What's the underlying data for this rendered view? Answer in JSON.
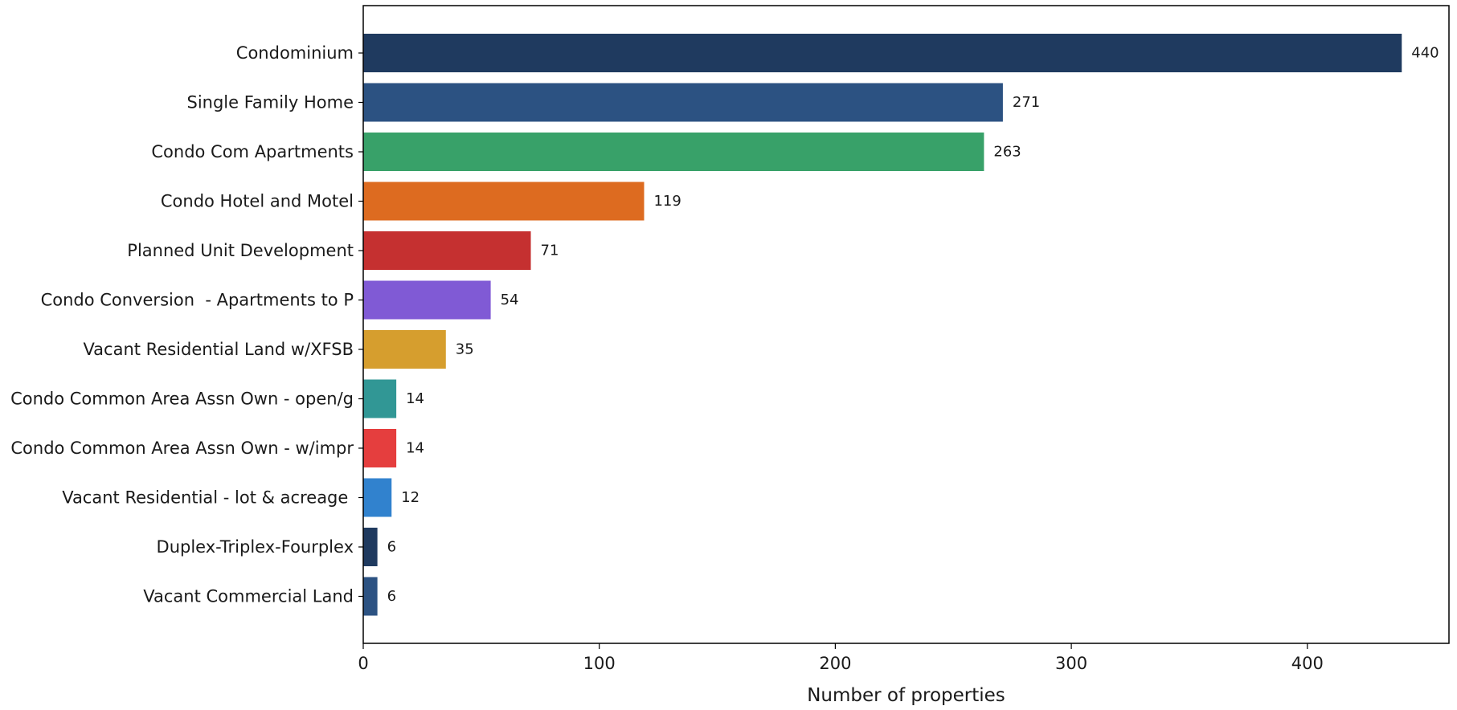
{
  "chart_data": {
    "type": "bar",
    "orientation": "horizontal",
    "title": "",
    "xlabel": "Number of properties",
    "ylabel": "",
    "xlim": [
      0,
      460
    ],
    "xticks": [
      0,
      100,
      200,
      300,
      400
    ],
    "grid": false,
    "legend": "none",
    "categories": [
      "Condominium",
      "Single Family Home",
      "Condo Com Apartments",
      "Condo Hotel and Motel",
      "Planned Unit Development",
      "Condo Conversion  - Apartments to P",
      "Vacant Residential Land w/XFSB",
      "Condo Common Area Assn Own - open/g",
      "Condo Common Area Assn Own - w/impr",
      "Vacant Residential - lot & acreage ",
      "Duplex-Triplex-Fourplex",
      "Vacant Commercial Land"
    ],
    "values": [
      440,
      271,
      263,
      119,
      71,
      54,
      35,
      14,
      14,
      12,
      6,
      6
    ],
    "colors": [
      "#1f3a5f",
      "#2c5282",
      "#38a169",
      "#dd6b20",
      "#c53030",
      "#805ad5",
      "#d69e2e",
      "#319795",
      "#e53e3e",
      "#3182ce",
      "#1f3a5f",
      "#2c5282"
    ]
  }
}
